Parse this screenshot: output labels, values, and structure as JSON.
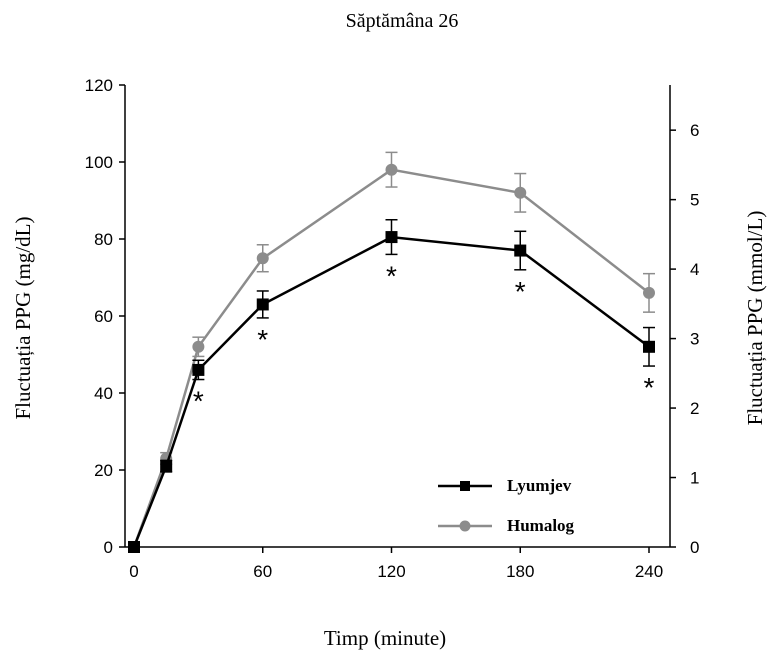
{
  "chart_data": {
    "type": "line",
    "title": "Săptămâna 26",
    "xlabel": "Timp (minute)",
    "ylabel": "Fluctuația PPG (mg/dL)",
    "y2label": "Fluctuația PPG (mmol/L)",
    "xlim": [
      0,
      240
    ],
    "ylim": [
      0,
      120
    ],
    "y2lim": [
      0,
      6.65
    ],
    "xticks": [
      0,
      60,
      120,
      180,
      240
    ],
    "yticks": [
      0,
      20,
      40,
      60,
      80,
      100,
      120
    ],
    "y2ticks": [
      0,
      1,
      2,
      3,
      4,
      5,
      6
    ],
    "grid": false,
    "legend_position": "bottom-right",
    "colors": {
      "Lyumjev": "#000000",
      "Humalog": "#8c8c8c"
    },
    "series": [
      {
        "name": "Lyumjev",
        "marker": "square",
        "x": [
          0,
          15,
          30,
          60,
          120,
          180,
          240
        ],
        "y": [
          0,
          21,
          46,
          63,
          80.5,
          77,
          52
        ],
        "err": [
          0,
          1.5,
          2.5,
          3.5,
          4.5,
          5,
          5
        ]
      },
      {
        "name": "Humalog",
        "marker": "circle",
        "x": [
          0,
          15,
          30,
          60,
          120,
          180,
          240
        ],
        "y": [
          0,
          23,
          52,
          75,
          98,
          92,
          66
        ],
        "err": [
          0,
          1.5,
          2.5,
          3.5,
          4.5,
          5,
          5
        ]
      }
    ],
    "annotations": [
      {
        "x": 30,
        "text": "*"
      },
      {
        "x": 60,
        "text": "*"
      },
      {
        "x": 120,
        "text": "*"
      },
      {
        "x": 180,
        "text": "*"
      },
      {
        "x": 240,
        "text": "*"
      }
    ]
  }
}
